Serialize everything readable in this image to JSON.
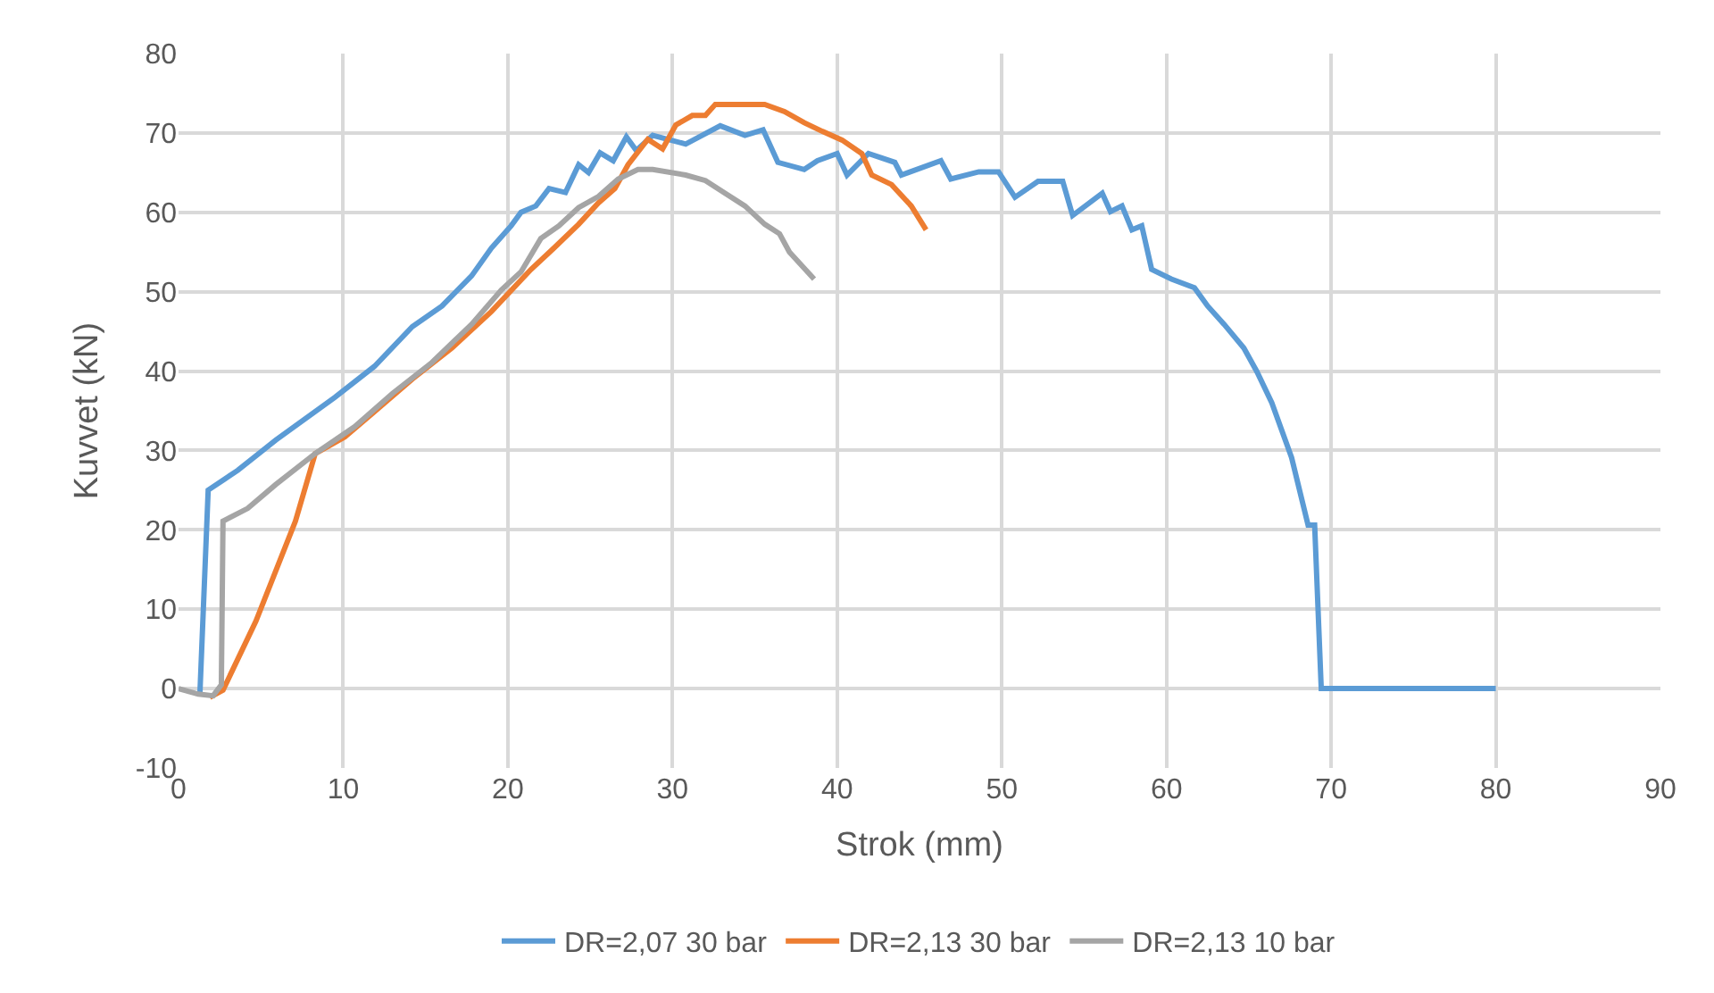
{
  "chart_data": {
    "type": "line",
    "xlabel": "Strok (mm)",
    "ylabel": "Kuvvet (kN)",
    "xlim": [
      0,
      90
    ],
    "xticks": [
      0,
      10,
      20,
      30,
      40,
      50,
      60,
      70,
      80,
      90
    ],
    "ylim": [
      -10,
      80
    ],
    "yticks": [
      -10,
      0,
      10,
      20,
      30,
      40,
      50,
      60,
      70,
      80
    ],
    "grid": true,
    "legend": "bottom",
    "marker": "none",
    "line_style": "solid",
    "series": [
      {
        "name": "DR=2,07 30 bar",
        "color": "#5b9bd5",
        "x": [
          1.3,
          1.8,
          3.6,
          5.9,
          9.5,
          11.9,
          14.2,
          16,
          17.8,
          19,
          20.2,
          20.8,
          21.7,
          22.5,
          23.5,
          24.3,
          24.9,
          25.6,
          26.4,
          27.2,
          27.8,
          28.8,
          30.8,
          32.9,
          34.4,
          35.5,
          36.4,
          38,
          38.8,
          40,
          40.6,
          41.9,
          43.5,
          43.9,
          46.3,
          46.9,
          48.6,
          49.8,
          50.8,
          52.2,
          53.7,
          54.3,
          56.1,
          56.6,
          57.3,
          57.9,
          58.5,
          59.1,
          60.3,
          61.7,
          62.5,
          63.5,
          64.7,
          65.5,
          66.4,
          67.6,
          68.6,
          69.0,
          69.4,
          80
        ],
        "values": [
          -0.5,
          25,
          27.5,
          31.3,
          36.7,
          40.6,
          45.6,
          48.2,
          52,
          55.5,
          58.3,
          60,
          60.8,
          63,
          62.5,
          66,
          65,
          67.5,
          66.5,
          69.5,
          67.8,
          69.7,
          68.6,
          70.9,
          69.7,
          70.4,
          66.3,
          65.4,
          66.5,
          67.4,
          64.7,
          67.4,
          66.3,
          64.7,
          66.5,
          64.2,
          65.1,
          65.1,
          61.9,
          63.9,
          63.9,
          59.6,
          62.4,
          60.1,
          60.8,
          57.8,
          58.3,
          52.8,
          51.6,
          50.5,
          48.2,
          45.9,
          42.9,
          39.9,
          36,
          29.1,
          20.6,
          20.6,
          0,
          0
        ]
      },
      {
        "name": "DR=2,13 30 bar",
        "color": "#ed7d31",
        "x": [
          1.9,
          2.7,
          4.7,
          7.1,
          8.3,
          10.1,
          11.9,
          14.2,
          16.6,
          19,
          21.4,
          22.8,
          24.3,
          25.5,
          26.5,
          27.3,
          28.5,
          29.4,
          30.2,
          31.2,
          32,
          32.6,
          35.6,
          36.8,
          38,
          39.1,
          40.3,
          41.5,
          42.1,
          43.3,
          44.5,
          45.4
        ],
        "values": [
          -1.1,
          -0.2,
          8.5,
          21.1,
          29.6,
          31.7,
          34.9,
          39,
          42.9,
          47.5,
          52.8,
          55.5,
          58.5,
          61.2,
          63,
          66,
          69.2,
          68,
          71,
          72.2,
          72.2,
          73.6,
          73.6,
          72.7,
          71.3,
          70.2,
          69.1,
          67.4,
          64.7,
          63.5,
          60.8,
          57.8
        ]
      },
      {
        "name": "DR=2,13 10 bar",
        "color": "#a5a5a5",
        "x": [
          0,
          1.2,
          2.1,
          2.6,
          2.7,
          4.2,
          5.9,
          8.3,
          10.7,
          13,
          15.4,
          17.8,
          19.6,
          20.8,
          22,
          23.1,
          24.3,
          25.5,
          26.7,
          27.9,
          28.8,
          30.8,
          32,
          33.2,
          34.4,
          35.6,
          36.5,
          37.1,
          38.6
        ],
        "values": [
          0,
          -0.7,
          -0.9,
          0.5,
          21.1,
          22.7,
          25.7,
          29.6,
          33,
          37.2,
          41.1,
          45.9,
          50.2,
          52.5,
          56.7,
          58.3,
          60.6,
          62,
          64.2,
          65.4,
          65.4,
          64.7,
          64,
          62.4,
          60.8,
          58.5,
          57.3,
          55,
          51.6
        ]
      }
    ]
  }
}
